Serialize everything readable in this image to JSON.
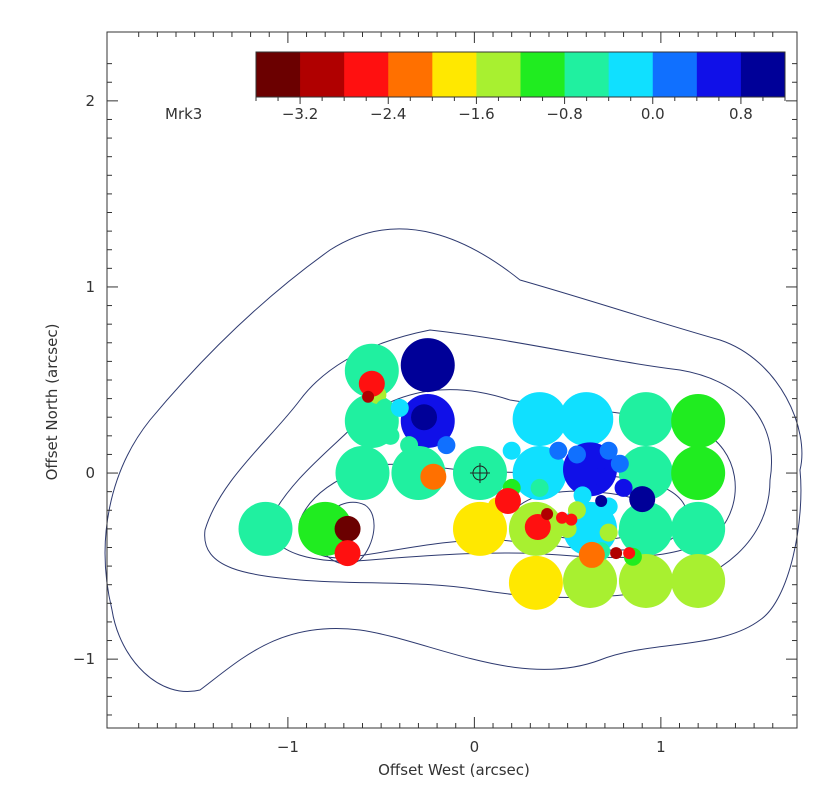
{
  "chart_data": {
    "type": "scatter",
    "title": "",
    "object_label": "Mrk3",
    "xlabel": "Offset West (arcsec)",
    "ylabel": "Offset North (arcsec)",
    "xlim": [
      -1.97,
      1.73
    ],
    "ylim": [
      -1.37,
      2.37
    ],
    "x_ticks": [
      {
        "value": -1,
        "label": "−1"
      },
      {
        "value": 0,
        "label": "0"
      },
      {
        "value": 1,
        "label": "1"
      }
    ],
    "y_ticks": [
      {
        "value": -1,
        "label": "−1"
      },
      {
        "value": 0,
        "label": "0"
      },
      {
        "value": 1,
        "label": "1"
      },
      {
        "value": 2,
        "label": "2"
      }
    ],
    "grid": false,
    "colorbar": {
      "range": [
        -3.6,
        1.2
      ],
      "colors": [
        "#6b0000",
        "#b00000",
        "#ff1010",
        "#ff7000",
        "#ffe800",
        "#a8f030",
        "#20ec20",
        "#20f0a0",
        "#10e0ff",
        "#1070ff",
        "#1010e8",
        "#000098"
      ],
      "tick_labels": [
        {
          "value": -3.2,
          "label": "−3.2"
        },
        {
          "value": -2.4,
          "label": "−2.4"
        },
        {
          "value": -1.6,
          "label": "−1.6"
        },
        {
          "value": -0.8,
          "label": "−0.8"
        },
        {
          "value": 0.0,
          "label": "0.0"
        },
        {
          "value": 0.8,
          "label": "0.8"
        }
      ]
    },
    "reference_marker": {
      "x": 0.03,
      "y": 0.0,
      "symbol": "circle-cross"
    },
    "series": [
      {
        "marker": "large-circle",
        "points": [
          {
            "x": -0.55,
            "y": 0.55,
            "v": -0.6
          },
          {
            "x": -0.25,
            "y": 0.58,
            "v": 0.8
          },
          {
            "x": -0.55,
            "y": 0.28,
            "v": -0.6
          },
          {
            "x": -0.25,
            "y": 0.28,
            "v": 0.5
          },
          {
            "x": 0.35,
            "y": 0.29,
            "v": -0.4
          },
          {
            "x": 0.6,
            "y": 0.29,
            "v": -0.4
          },
          {
            "x": 0.92,
            "y": 0.29,
            "v": -0.8
          },
          {
            "x": 1.2,
            "y": 0.28,
            "v": -1.2
          },
          {
            "x": -0.6,
            "y": 0.0,
            "v": -0.8
          },
          {
            "x": -0.3,
            "y": 0.0,
            "v": -0.8
          },
          {
            "x": 0.03,
            "y": 0.0,
            "v": -0.8
          },
          {
            "x": 0.35,
            "y": 0.0,
            "v": -0.4
          },
          {
            "x": 0.62,
            "y": 0.02,
            "v": 0.4
          },
          {
            "x": 0.92,
            "y": 0.0,
            "v": -0.6
          },
          {
            "x": 1.2,
            "y": 0.0,
            "v": -1.0
          },
          {
            "x": -1.12,
            "y": -0.3,
            "v": -0.8
          },
          {
            "x": -0.8,
            "y": -0.3,
            "v": -1.2
          },
          {
            "x": 0.03,
            "y": -0.3,
            "v": -2.0
          },
          {
            "x": 0.33,
            "y": -0.3,
            "v": -1.3
          },
          {
            "x": 0.62,
            "y": -0.3,
            "v": -0.4
          },
          {
            "x": 0.92,
            "y": -0.3,
            "v": -0.8
          },
          {
            "x": 1.2,
            "y": -0.3,
            "v": -0.8
          },
          {
            "x": 0.33,
            "y": -0.59,
            "v": -2.0
          },
          {
            "x": 0.62,
            "y": -0.58,
            "v": -1.6
          },
          {
            "x": 0.92,
            "y": -0.58,
            "v": -1.5
          },
          {
            "x": 1.2,
            "y": -0.58,
            "v": -1.6
          }
        ]
      },
      {
        "marker": "small-circle",
        "points": [
          {
            "x": -0.52,
            "y": 0.42,
            "v": -1.6
          },
          {
            "x": -0.48,
            "y": 0.35,
            "v": -0.6
          },
          {
            "x": -0.4,
            "y": 0.35,
            "v": -0.4
          },
          {
            "x": -0.45,
            "y": 0.2,
            "v": -0.5
          },
          {
            "x": -0.35,
            "y": 0.15,
            "v": -0.6
          },
          {
            "x": -0.15,
            "y": 0.15,
            "v": 0.0
          },
          {
            "x": 0.2,
            "y": 0.12,
            "v": -0.3
          },
          {
            "x": 0.45,
            "y": 0.12,
            "v": 0.1
          },
          {
            "x": 0.55,
            "y": 0.1,
            "v": 0.3
          },
          {
            "x": 0.72,
            "y": 0.12,
            "v": 0.3
          },
          {
            "x": 0.78,
            "y": 0.05,
            "v": 0.0
          },
          {
            "x": 0.68,
            "y": -0.02,
            "v": 0.5
          },
          {
            "x": 0.8,
            "y": -0.08,
            "v": 0.6
          },
          {
            "x": 0.2,
            "y": -0.08,
            "v": -1.2
          },
          {
            "x": 0.35,
            "y": -0.08,
            "v": -0.5
          },
          {
            "x": 0.58,
            "y": -0.12,
            "v": -0.3
          },
          {
            "x": 0.72,
            "y": -0.18,
            "v": -0.2
          },
          {
            "x": 0.12,
            "y": -0.18,
            "v": -1.9
          },
          {
            "x": 0.5,
            "y": -0.3,
            "v": -1.3
          },
          {
            "x": 0.55,
            "y": -0.2,
            "v": -1.6
          },
          {
            "x": 0.72,
            "y": -0.32,
            "v": -1.3
          },
          {
            "x": 0.82,
            "y": -0.32,
            "v": -0.8
          },
          {
            "x": 0.68,
            "y": -0.42,
            "v": -0.8
          },
          {
            "x": 0.85,
            "y": -0.45,
            "v": -0.9
          },
          {
            "x": 0.28,
            "y": -0.38,
            "v": -1.6
          }
        ]
      },
      {
        "marker": "medium-circle",
        "points": [
          {
            "x": -0.55,
            "y": 0.48,
            "v": -2.6
          },
          {
            "x": -0.27,
            "y": 0.3,
            "v": 1.1
          },
          {
            "x": -0.22,
            "y": -0.02,
            "v": -2.4
          },
          {
            "x": -0.68,
            "y": -0.3,
            "v": -3.3
          },
          {
            "x": -0.68,
            "y": -0.43,
            "v": -2.8
          },
          {
            "x": 0.18,
            "y": -0.15,
            "v": -2.5
          },
          {
            "x": 0.34,
            "y": -0.29,
            "v": -2.8
          },
          {
            "x": 0.63,
            "y": -0.44,
            "v": -2.4
          },
          {
            "x": 0.9,
            "y": -0.14,
            "v": 0.9
          }
        ]
      },
      {
        "marker": "small-dot",
        "points": [
          {
            "x": -0.57,
            "y": 0.41,
            "v": -2.9
          },
          {
            "x": 0.39,
            "y": -0.22,
            "v": -2.9
          },
          {
            "x": 0.47,
            "y": -0.24,
            "v": -2.6
          },
          {
            "x": 0.52,
            "y": -0.25,
            "v": -2.5
          },
          {
            "x": 0.76,
            "y": -0.43,
            "v": -3.0
          },
          {
            "x": 0.83,
            "y": -0.43,
            "v": -2.6
          },
          {
            "x": 0.68,
            "y": -0.15,
            "v": 1.0
          }
        ]
      }
    ]
  }
}
